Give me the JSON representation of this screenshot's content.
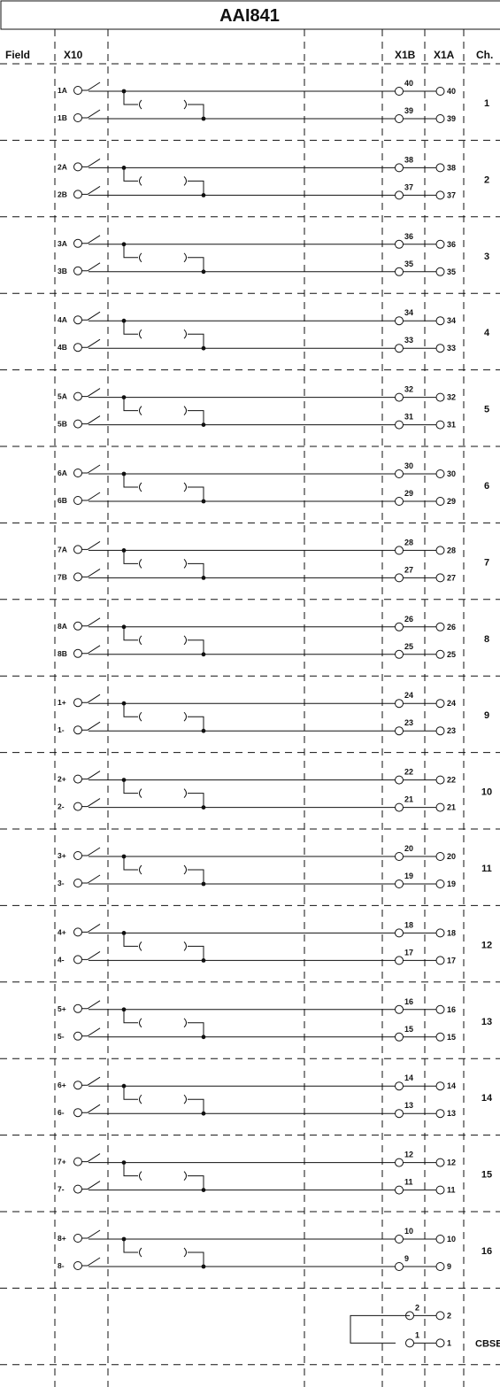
{
  "title": "AAI841",
  "headers": {
    "field": "Field",
    "x10": "X10",
    "x1b": "X1B",
    "x1a": "X1A",
    "ch": "Ch."
  },
  "channels": [
    {
      "ch": "1",
      "a": "1A",
      "b": "1B",
      "pa": "40",
      "pb": "39"
    },
    {
      "ch": "2",
      "a": "2A",
      "b": "2B",
      "pa": "38",
      "pb": "37"
    },
    {
      "ch": "3",
      "a": "3A",
      "b": "3B",
      "pa": "36",
      "pb": "35"
    },
    {
      "ch": "4",
      "a": "4A",
      "b": "4B",
      "pa": "34",
      "pb": "33"
    },
    {
      "ch": "5",
      "a": "5A",
      "b": "5B",
      "pa": "32",
      "pb": "31"
    },
    {
      "ch": "6",
      "a": "6A",
      "b": "6B",
      "pa": "30",
      "pb": "29"
    },
    {
      "ch": "7",
      "a": "7A",
      "b": "7B",
      "pa": "28",
      "pb": "27"
    },
    {
      "ch": "8",
      "a": "8A",
      "b": "8B",
      "pa": "26",
      "pb": "25"
    },
    {
      "ch": "9",
      "a": "1+",
      "b": "1-",
      "pa": "24",
      "pb": "23"
    },
    {
      "ch": "10",
      "a": "2+",
      "b": "2-",
      "pa": "22",
      "pb": "21"
    },
    {
      "ch": "11",
      "a": "3+",
      "b": "3-",
      "pa": "20",
      "pb": "19"
    },
    {
      "ch": "12",
      "a": "4+",
      "b": "4-",
      "pa": "18",
      "pb": "17"
    },
    {
      "ch": "13",
      "a": "5+",
      "b": "5-",
      "pa": "16",
      "pb": "15"
    },
    {
      "ch": "14",
      "a": "6+",
      "b": "6-",
      "pa": "14",
      "pb": "13"
    },
    {
      "ch": "15",
      "a": "7+",
      "b": "7-",
      "pa": "12",
      "pb": "11"
    },
    {
      "ch": "16",
      "a": "8+",
      "b": "8-",
      "pa": "10",
      "pb": "9"
    }
  ],
  "cbse": {
    "label": "CBSE",
    "pa": "2",
    "pb": "1"
  }
}
